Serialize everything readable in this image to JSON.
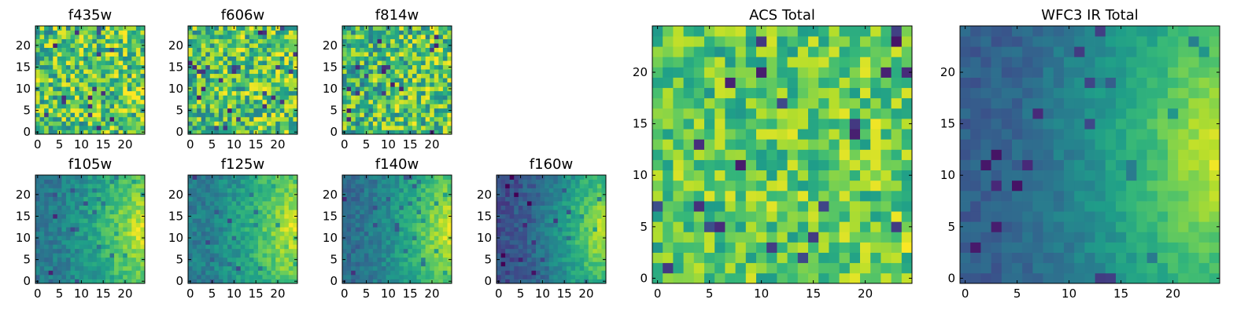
{
  "chart_data": [
    {
      "type": "heatmap",
      "title": "f435w",
      "grid_size": 25,
      "xlim": [
        0,
        24
      ],
      "ylim": [
        0,
        24
      ],
      "xticks": [
        0,
        5,
        10,
        15,
        20
      ],
      "yticks": [
        0,
        5,
        10,
        15,
        20
      ],
      "colormap": "viridis",
      "pattern": "noise",
      "base": 0.7,
      "amp": 0.05,
      "noise": 0.3,
      "seed": 11
    },
    {
      "type": "heatmap",
      "title": "f606w",
      "grid_size": 25,
      "xlim": [
        0,
        24
      ],
      "ylim": [
        0,
        24
      ],
      "xticks": [
        0,
        5,
        10,
        15,
        20
      ],
      "yticks": [
        0,
        5,
        10,
        15,
        20
      ],
      "colormap": "viridis",
      "pattern": "noise",
      "base": 0.7,
      "amp": 0.05,
      "noise": 0.3,
      "seed": 23
    },
    {
      "type": "heatmap",
      "title": "f814w",
      "grid_size": 25,
      "xlim": [
        0,
        24
      ],
      "ylim": [
        0,
        24
      ],
      "xticks": [
        0,
        5,
        10,
        15,
        20
      ],
      "yticks": [
        0,
        5,
        10,
        15,
        20
      ],
      "colormap": "viridis",
      "pattern": "noise",
      "base": 0.66,
      "amp": 0.08,
      "noise": 0.3,
      "seed": 37
    },
    {
      "type": "heatmap",
      "title": "f105w",
      "grid_size": 25,
      "xlim": [
        0,
        24
      ],
      "ylim": [
        0,
        24
      ],
      "xticks": [
        0,
        5,
        10,
        15,
        20
      ],
      "yticks": [
        0,
        5,
        10,
        15,
        20
      ],
      "colormap": "viridis",
      "pattern": "gradient",
      "base": 0.4,
      "amp": 0.55,
      "noise": 0.1,
      "seed": 41
    },
    {
      "type": "heatmap",
      "title": "f125w",
      "grid_size": 25,
      "xlim": [
        0,
        24
      ],
      "ylim": [
        0,
        24
      ],
      "xticks": [
        0,
        5,
        10,
        15,
        20
      ],
      "yticks": [
        0,
        5,
        10,
        15,
        20
      ],
      "colormap": "viridis",
      "pattern": "gradient",
      "base": 0.42,
      "amp": 0.55,
      "noise": 0.1,
      "seed": 53
    },
    {
      "type": "heatmap",
      "title": "f140w",
      "grid_size": 25,
      "xlim": [
        0,
        24
      ],
      "ylim": [
        0,
        24
      ],
      "xticks": [
        0,
        5,
        10,
        15,
        20
      ],
      "yticks": [
        0,
        5,
        10,
        15,
        20
      ],
      "colormap": "viridis",
      "pattern": "gradient",
      "base": 0.36,
      "amp": 0.6,
      "noise": 0.09,
      "seed": 61
    },
    {
      "type": "heatmap",
      "title": "f160w",
      "grid_size": 25,
      "xlim": [
        0,
        24
      ],
      "ylim": [
        0,
        24
      ],
      "xticks": [
        0,
        5,
        10,
        15,
        20
      ],
      "yticks": [
        0,
        5,
        10,
        15,
        20
      ],
      "colormap": "viridis",
      "pattern": "gradient",
      "base": 0.24,
      "amp": 0.7,
      "noise": 0.09,
      "seed": 73
    },
    {
      "type": "heatmap",
      "title": "ACS Total",
      "grid_size": 25,
      "xlim": [
        0,
        24
      ],
      "ylim": [
        0,
        24
      ],
      "xticks": [
        0,
        5,
        10,
        15,
        20
      ],
      "yticks": [
        0,
        5,
        10,
        15,
        20
      ],
      "colormap": "viridis",
      "pattern": "noise",
      "base": 0.72,
      "amp": 0.06,
      "noise": 0.22,
      "seed": 89
    },
    {
      "type": "heatmap",
      "title": "WFC3 IR Total",
      "grid_size": 25,
      "xlim": [
        0,
        24
      ],
      "ylim": [
        0,
        24
      ],
      "xticks": [
        0,
        5,
        10,
        15,
        20
      ],
      "yticks": [
        0,
        5,
        10,
        15,
        20
      ],
      "colormap": "viridis",
      "pattern": "gradient",
      "base": 0.3,
      "amp": 0.65,
      "noise": 0.06,
      "seed": 97
    }
  ]
}
